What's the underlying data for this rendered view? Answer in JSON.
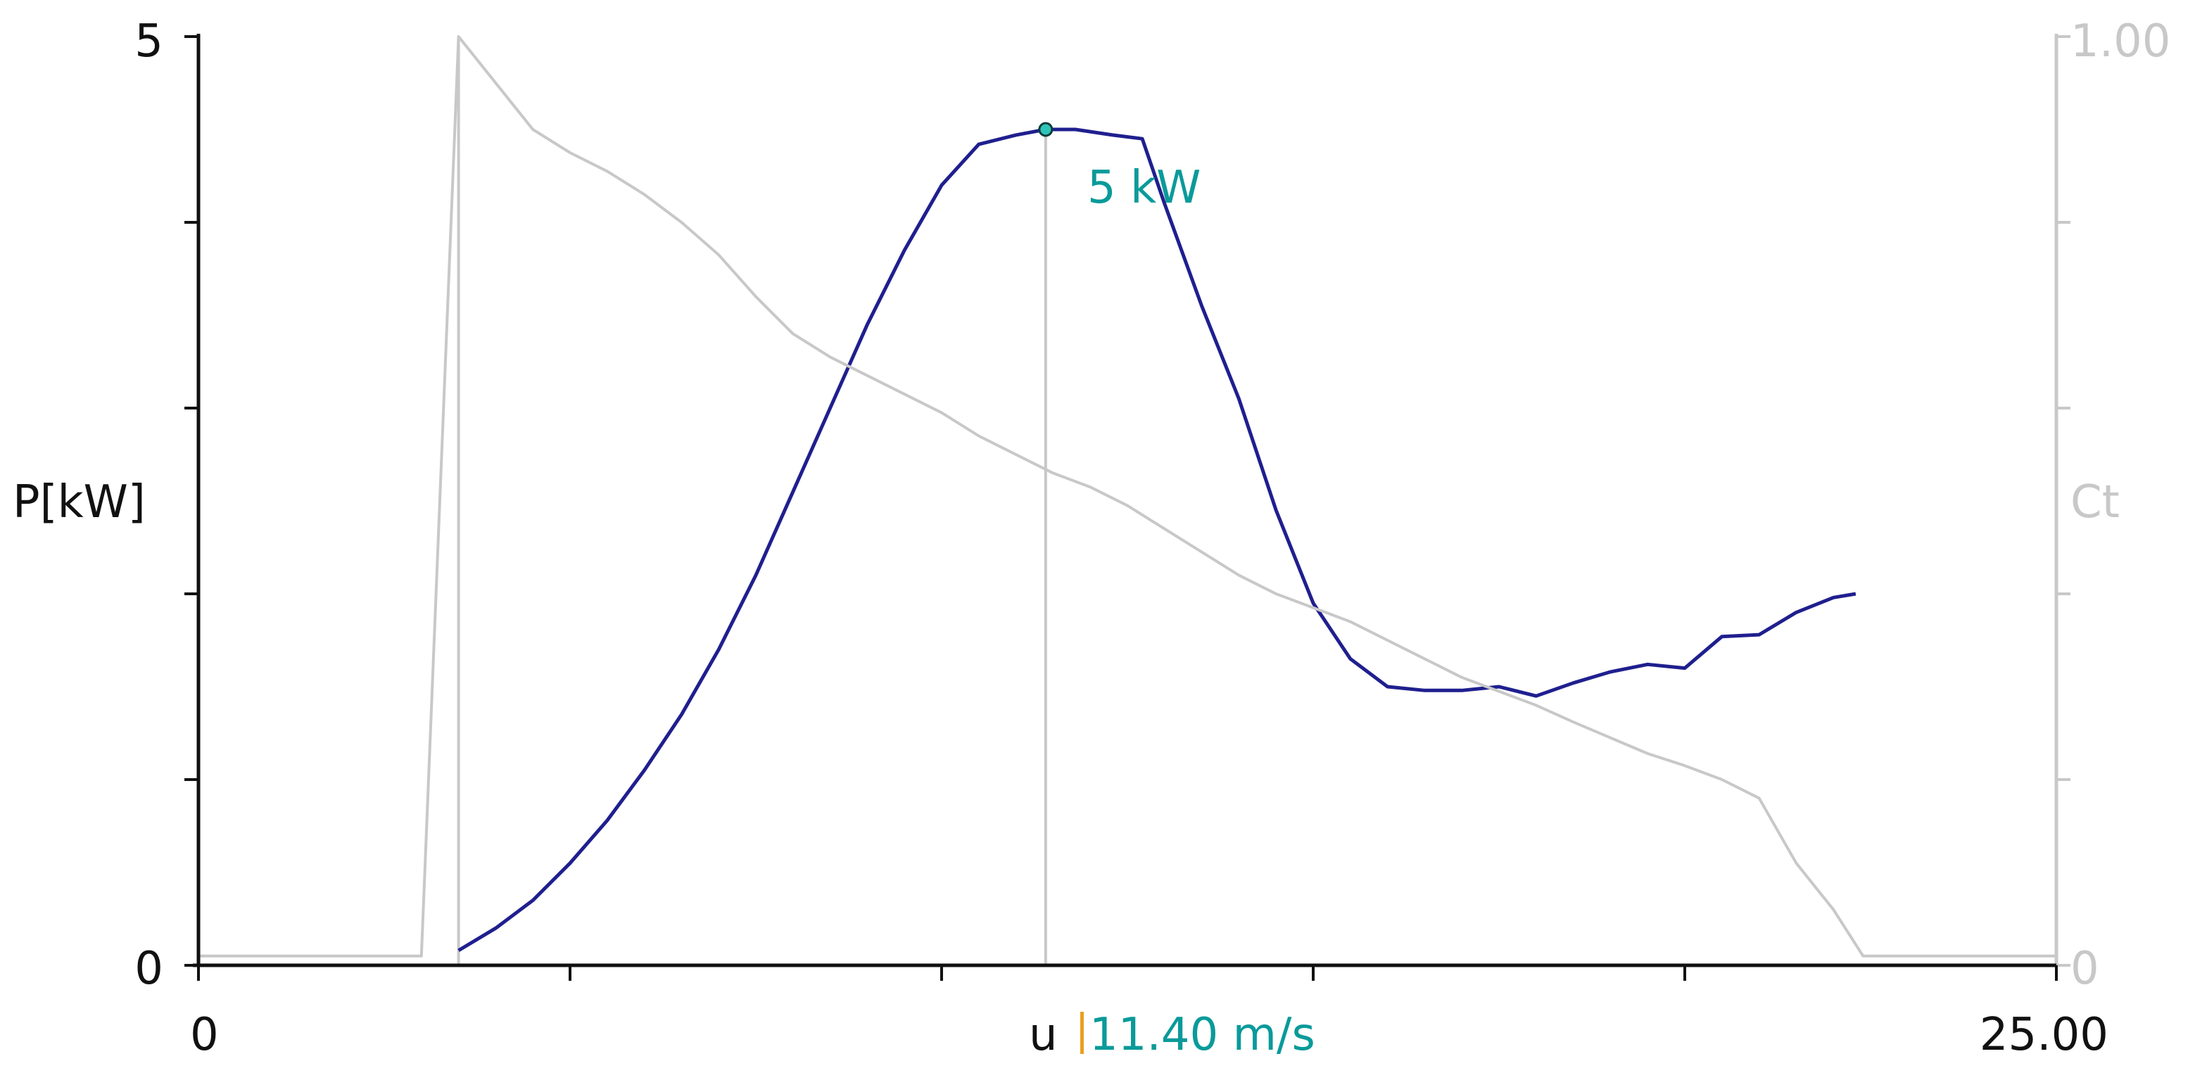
{
  "chart_data": {
    "type": "line",
    "xlabel": "u",
    "x_tick_labels": {
      "min": "0",
      "max": "25.00"
    },
    "xlim": [
      0,
      25
    ],
    "y_left": {
      "label": "P[kW]",
      "tick_labels": {
        "min": "0",
        "max": "5"
      },
      "ylim": [
        0,
        5
      ]
    },
    "y_right": {
      "label": "Ct",
      "tick_labels": {
        "min": "0",
        "max": "1.00"
      },
      "ylim": [
        0,
        1
      ]
    },
    "cursor": {
      "x": 11.4,
      "readout": "11.40 m/s",
      "marker_label": "5 kW",
      "marker_y": 4.5
    },
    "cut_in_x": 3.5,
    "series": [
      {
        "axis": "left",
        "color": "#1f1f8f",
        "x": [
          3.5,
          4.0,
          4.5,
          5.0,
          5.5,
          6.0,
          6.5,
          7.0,
          7.5,
          8.0,
          8.5,
          9.0,
          9.5,
          10.0,
          10.5,
          11.0,
          11.4,
          11.8,
          12.3,
          12.7,
          13.0,
          13.5,
          14.0,
          14.5,
          15.0,
          15.5,
          16.0,
          16.5,
          17.0,
          17.5,
          18.0,
          18.5,
          19.0,
          19.5,
          20.0,
          20.5,
          21.0,
          21.5,
          22.0,
          22.3
        ],
        "values": [
          0.08,
          0.2,
          0.35,
          0.55,
          0.78,
          1.05,
          1.35,
          1.7,
          2.1,
          2.55,
          3.0,
          3.45,
          3.85,
          4.2,
          4.42,
          4.47,
          4.5,
          4.5,
          4.47,
          4.45,
          4.1,
          3.55,
          3.05,
          2.45,
          1.95,
          1.65,
          1.5,
          1.48,
          1.48,
          1.5,
          1.45,
          1.52,
          1.58,
          1.62,
          1.6,
          1.77,
          1.78,
          1.9,
          1.98,
          2.0
        ]
      },
      {
        "axis": "right",
        "color": "#c8c8c8",
        "x": [
          0,
          3.0,
          3.5,
          4.0,
          4.5,
          5.0,
          5.5,
          6.0,
          6.5,
          7.0,
          7.5,
          8.0,
          8.5,
          9.0,
          9.5,
          10.0,
          10.5,
          11.0,
          11.5,
          12.0,
          12.5,
          13.0,
          13.5,
          14.0,
          14.5,
          15.0,
          15.5,
          16.0,
          16.5,
          17.0,
          17.5,
          18.0,
          18.5,
          19.0,
          19.5,
          20.0,
          20.5,
          21.0,
          21.5,
          22.0,
          22.4,
          25.0
        ],
        "values": [
          0.01,
          0.01,
          1.0,
          0.95,
          0.9,
          0.875,
          0.855,
          0.83,
          0.8,
          0.765,
          0.72,
          0.68,
          0.655,
          0.635,
          0.615,
          0.595,
          0.57,
          0.55,
          0.53,
          0.515,
          0.495,
          0.47,
          0.445,
          0.42,
          0.4,
          0.385,
          0.37,
          0.35,
          0.33,
          0.31,
          0.295,
          0.28,
          0.262,
          0.245,
          0.228,
          0.215,
          0.2,
          0.18,
          0.11,
          0.06,
          0.01,
          0.01
        ]
      }
    ]
  },
  "colors": {
    "axis_dark": "#111111",
    "axis_gray": "#c8c8c8",
    "power": "#1f1f8f",
    "ct": "#c8c8c8",
    "cursor": "#c8c8c8",
    "readout": "#0a9a9a"
  }
}
